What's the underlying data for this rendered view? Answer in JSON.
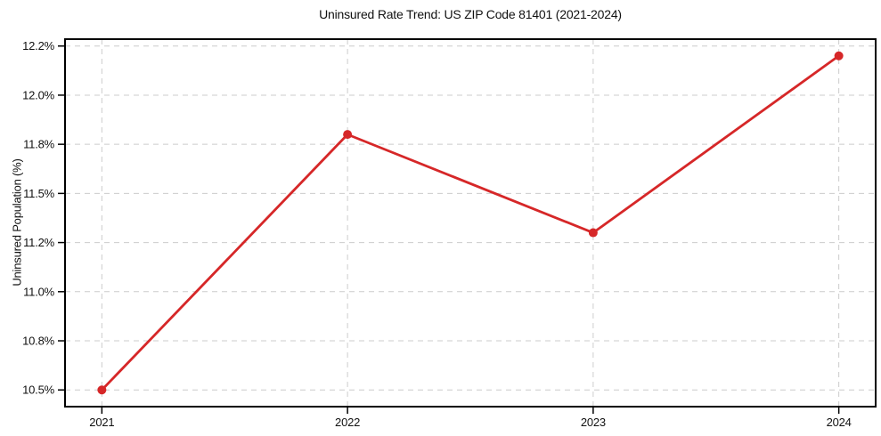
{
  "chart_data": {
    "type": "line",
    "title": "Uninsured Rate Trend: US ZIP Code 81401 (2021-2024)",
    "xlabel": "",
    "ylabel": "Uninsured Population (%)",
    "x": [
      2021,
      2022,
      2023,
      2024
    ],
    "xtick_labels": [
      "2021",
      "2022",
      "2023",
      "2024"
    ],
    "values": [
      10.5,
      11.8,
      11.3,
      12.2
    ],
    "unit": "%",
    "ytick_values": [
      10.5,
      10.75,
      11.0,
      11.25,
      11.5,
      11.75,
      12.0,
      12.25
    ],
    "ytick_labels": [
      "10.5%",
      "10.8%",
      "11.0%",
      "11.2%",
      "11.5%",
      "11.8%",
      "12.0%",
      "12.2%"
    ],
    "xlim": [
      2020.85,
      2024.15
    ],
    "ylim": [
      10.415,
      12.285
    ],
    "grid": true,
    "grid_style": "dashed",
    "grid_color": "#cccccc",
    "legend_position": "none",
    "line_color": "#d62728",
    "marker": "o",
    "spine_color": "#000000"
  }
}
